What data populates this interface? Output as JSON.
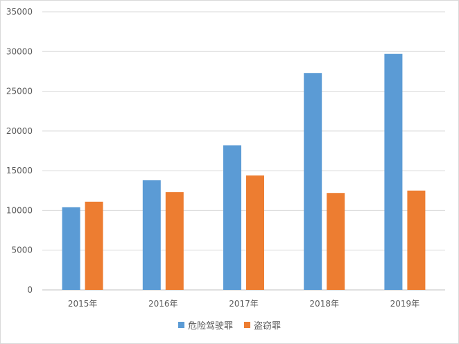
{
  "chart_data": {
    "type": "bar",
    "title": "",
    "xlabel": "",
    "ylabel": "",
    "categories": [
      "2015年",
      "2016年",
      "2017年",
      "2018年",
      "2019年"
    ],
    "series": [
      {
        "name": "危险驾驶罪",
        "color": "#5b9bd5",
        "values": [
          10400,
          13800,
          18200,
          27300,
          29700
        ]
      },
      {
        "name": "盗窃罪",
        "color": "#ed7d31",
        "values": [
          11100,
          12300,
          14400,
          12200,
          12500
        ]
      }
    ],
    "ylim": [
      0,
      35000
    ],
    "yticks": [
      "0",
      "5000",
      "10000",
      "15000",
      "20000",
      "25000",
      "30000",
      "35000"
    ],
    "grid": true,
    "legend_position": "bottom"
  }
}
